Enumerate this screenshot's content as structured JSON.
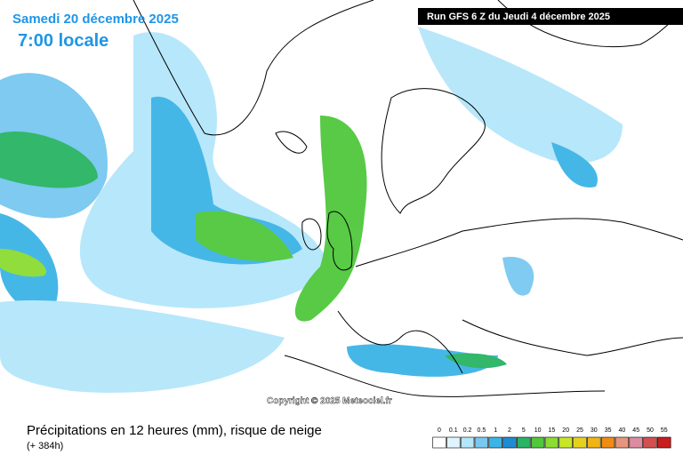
{
  "header": {
    "date": "Samedi 20 décembre 2025",
    "time": "7:00 locale",
    "run": "Run GFS 6 Z du Jeudi 4 décembre 2025"
  },
  "copyright": "Copyright © 2025 Meteociel.fr",
  "footer": {
    "title": "Précipitations en 12 heures (mm), risque de neige",
    "lead": "(+ 384h)"
  },
  "legend": {
    "items": [
      {
        "label": "0",
        "color": "#ffffff"
      },
      {
        "label": "0.1",
        "color": "#dff4ff"
      },
      {
        "label": "0.2",
        "color": "#b4e6fa"
      },
      {
        "label": "0.5",
        "color": "#78c8f0"
      },
      {
        "label": "1",
        "color": "#3cb4e6"
      },
      {
        "label": "2",
        "color": "#1e8cd2"
      },
      {
        "label": "5",
        "color": "#28b464"
      },
      {
        "label": "10",
        "color": "#50c83c"
      },
      {
        "label": "15",
        "color": "#8cdc32"
      },
      {
        "label": "20",
        "color": "#c8e628"
      },
      {
        "label": "25",
        "color": "#e6d21e"
      },
      {
        "label": "30",
        "color": "#f0b414"
      },
      {
        "label": "35",
        "color": "#f08c14"
      },
      {
        "label": "40",
        "color": "#e6967d"
      },
      {
        "label": "45",
        "color": "#dc8ca0"
      },
      {
        "label": "50",
        "color": "#d25050"
      },
      {
        "label": "55",
        "color": "#c81e1e"
      }
    ]
  }
}
